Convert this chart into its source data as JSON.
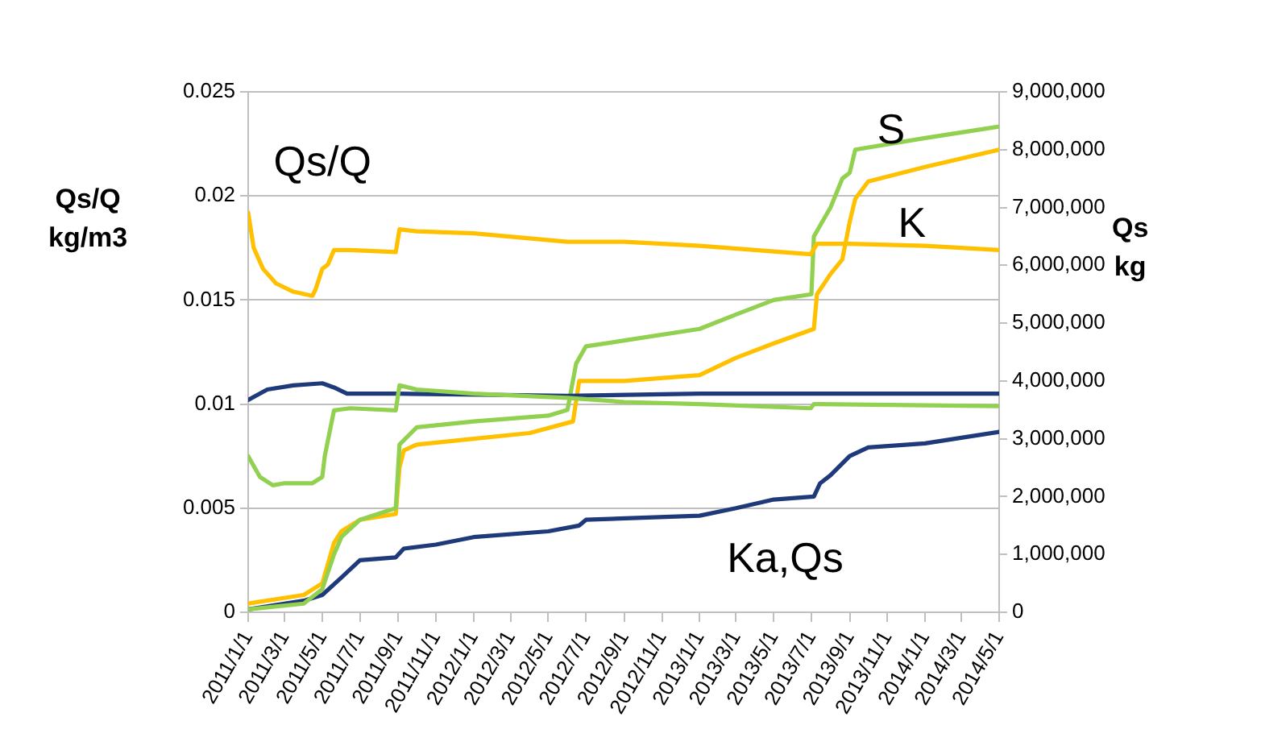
{
  "chart_data": {
    "type": "line",
    "ylabel": "Qs/Q\nkg/m3",
    "y2label": "Qs\nkg",
    "xlim": [
      "2011-01-01",
      "2014-05-01"
    ],
    "xticks": [
      {
        "value": "2011-01-01",
        "label": "2011/1/1"
      },
      {
        "value": "2011-03-01",
        "label": "2011/3/1"
      },
      {
        "value": "2011-05-01",
        "label": "2011/5/1"
      },
      {
        "value": "2011-07-01",
        "label": "2011/7/1"
      },
      {
        "value": "2011-09-01",
        "label": "2011/9/1"
      },
      {
        "value": "2011-11-01",
        "label": "2011/11/1"
      },
      {
        "value": "2012-01-01",
        "label": "2012/1/1"
      },
      {
        "value": "2012-03-01",
        "label": "2012/3/1"
      },
      {
        "value": "2012-05-01",
        "label": "2012/5/1"
      },
      {
        "value": "2012-07-01",
        "label": "2012/7/1"
      },
      {
        "value": "2012-09-01",
        "label": "2012/9/1"
      },
      {
        "value": "2012-11-01",
        "label": "2012/11/1"
      },
      {
        "value": "2013-01-01",
        "label": "2013/1/1"
      },
      {
        "value": "2013-03-01",
        "label": "2013/3/1"
      },
      {
        "value": "2013-05-01",
        "label": "2013/5/1"
      },
      {
        "value": "2013-07-01",
        "label": "2013/7/1"
      },
      {
        "value": "2013-09-01",
        "label": "2013/9/1"
      },
      {
        "value": "2013-11-01",
        "label": "2013/11/1"
      },
      {
        "value": "2014-01-01",
        "label": "2014/1/1"
      },
      {
        "value": "2014-03-01",
        "label": "2014/3/1"
      },
      {
        "value": "2014-05-01",
        "label": "2014/5/1"
      }
    ],
    "ylim": [
      0,
      0.025
    ],
    "yticks": [
      0,
      0.005,
      0.01,
      0.015,
      0.02,
      0.025
    ],
    "y2lim": [
      0,
      9000000
    ],
    "y2ticks": [
      0,
      {
        "value": 1000000,
        "label": "1,000,000"
      },
      {
        "value": 2000000,
        "label": "2,000,000"
      },
      {
        "value": 3000000,
        "label": "3,000,000"
      },
      {
        "value": 4000000,
        "label": "4,000,000"
      },
      {
        "value": 5000000,
        "label": "5,000,000"
      },
      {
        "value": 6000000,
        "label": "6,000,000"
      },
      {
        "value": 7000000,
        "label": "7,000,000"
      },
      {
        "value": 8000000,
        "label": "8,000,000"
      },
      {
        "value": 9000000,
        "label": "9,000,000"
      }
    ],
    "grid": "y",
    "legend": false,
    "marker": "none",
    "line_style": "solid",
    "annotations": [
      "Qs/Q",
      "S",
      "K",
      "Ka,Qs"
    ],
    "series": [
      {
        "color": "#ffc000",
        "x": [
          "2011-01-01",
          "2011-01-10",
          "2011-01-25",
          "2011-02-15",
          "2011-03-15",
          "2011-04-15",
          "2011-04-20",
          "2011-05-01",
          "2011-05-10",
          "2011-05-20",
          "2011-06-15",
          "2011-08-28",
          "2011-09-03",
          "2011-10-01",
          "2012-01-01",
          "2012-06-01",
          "2012-09-01",
          "2013-01-01",
          "2013-06-30",
          "2013-07-10",
          "2013-09-01",
          "2014-01-01",
          "2014-05-01"
        ],
        "values": [
          0.0192,
          0.0175,
          0.0165,
          0.0158,
          0.0154,
          0.0152,
          0.0155,
          0.0165,
          0.0167,
          0.0174,
          0.0174,
          0.0173,
          0.0184,
          0.0183,
          0.0182,
          0.0178,
          0.0178,
          0.0176,
          0.0172,
          0.0177,
          0.0177,
          0.0176,
          0.0174
        ]
      },
      {
        "color": "#92d050",
        "x": [
          "2011-01-01",
          "2011-01-20",
          "2011-02-10",
          "2011-03-01",
          "2011-04-15",
          "2011-05-01",
          "2011-05-05",
          "2011-05-20",
          "2011-06-15",
          "2011-08-28",
          "2011-09-03",
          "2011-10-01",
          "2012-01-01",
          "2012-06-01",
          "2012-09-01",
          "2013-01-01",
          "2013-06-30",
          "2013-07-05",
          "2014-05-01"
        ],
        "values": [
          0.0075,
          0.0065,
          0.0061,
          0.0062,
          0.0062,
          0.0065,
          0.0075,
          0.0097,
          0.0098,
          0.0097,
          0.0109,
          0.0107,
          0.0105,
          0.0103,
          0.0101,
          0.01,
          0.0098,
          0.01,
          0.0099
        ]
      },
      {
        "color": "#1f3a7a",
        "x": [
          "2011-01-01",
          "2011-02-01",
          "2011-03-15",
          "2011-05-01",
          "2011-05-20",
          "2011-06-10",
          "2011-09-01",
          "2012-06-01",
          "2013-01-01",
          "2014-05-01"
        ],
        "values": [
          0.0102,
          0.0107,
          0.0109,
          0.011,
          0.0108,
          0.0105,
          0.0105,
          0.0104,
          0.0105,
          0.0105
        ]
      },
      {
        "color": "#92d050",
        "axis": "y2",
        "x": [
          "2011-01-01",
          "2011-04-01",
          "2011-05-01",
          "2011-05-20",
          "2011-06-01",
          "2011-07-01",
          "2011-08-28",
          "2011-09-03",
          "2011-10-01",
          "2012-01-01",
          "2012-05-01",
          "2012-06-01",
          "2012-06-15",
          "2012-07-01",
          "2012-09-01",
          "2013-01-01",
          "2013-03-01",
          "2013-05-01",
          "2013-07-01",
          "2013-07-05",
          "2013-08-01",
          "2013-08-20",
          "2013-09-01",
          "2013-09-10",
          "2014-01-01",
          "2014-05-01"
        ],
        "values": [
          50000,
          150000,
          400000,
          1000000,
          1300000,
          1600000,
          1800000,
          2900000,
          3200000,
          3300000,
          3400000,
          3500000,
          4300000,
          4600000,
          4700000,
          4900000,
          5150000,
          5400000,
          5500000,
          6500000,
          7000000,
          7500000,
          7600000,
          8000000,
          8200000,
          8400000
        ]
      },
      {
        "color": "#ffc000",
        "axis": "y2",
        "x": [
          "2011-01-01",
          "2011-04-01",
          "2011-05-01",
          "2011-05-20",
          "2011-06-01",
          "2011-07-01",
          "2011-08-28",
          "2011-09-03",
          "2011-09-10",
          "2011-10-01",
          "2012-01-01",
          "2012-04-01",
          "2012-06-10",
          "2012-06-20",
          "2012-09-01",
          "2013-01-01",
          "2013-03-01",
          "2013-05-01",
          "2013-07-05",
          "2013-07-10",
          "2013-08-01",
          "2013-08-20",
          "2013-09-01",
          "2013-09-10",
          "2013-10-01",
          "2014-01-01",
          "2014-05-01"
        ],
        "values": [
          150000,
          300000,
          500000,
          1200000,
          1400000,
          1600000,
          1700000,
          2500000,
          2800000,
          2900000,
          3000000,
          3100000,
          3300000,
          4000000,
          4000000,
          4100000,
          4400000,
          4650000,
          4900000,
          5500000,
          5850000,
          6100000,
          6750000,
          7150000,
          7450000,
          7700000,
          8000000
        ]
      },
      {
        "color": "#1f3a7a",
        "axis": "y2",
        "x": [
          "2011-01-01",
          "2011-04-01",
          "2011-05-01",
          "2011-06-01",
          "2011-07-01",
          "2011-08-28",
          "2011-09-10",
          "2011-11-01",
          "2012-01-01",
          "2012-05-01",
          "2012-06-20",
          "2012-07-01",
          "2013-01-01",
          "2013-03-01",
          "2013-05-01",
          "2013-07-05",
          "2013-07-15",
          "2013-08-01",
          "2013-09-01",
          "2013-10-01",
          "2014-01-01",
          "2014-05-01"
        ],
        "values": [
          50000,
          200000,
          300000,
          600000,
          900000,
          950000,
          1100000,
          1170000,
          1300000,
          1400000,
          1500000,
          1600000,
          1670000,
          1800000,
          1950000,
          2000000,
          2230000,
          2370000,
          2700000,
          2850000,
          2920000,
          3120000
        ]
      }
    ]
  }
}
